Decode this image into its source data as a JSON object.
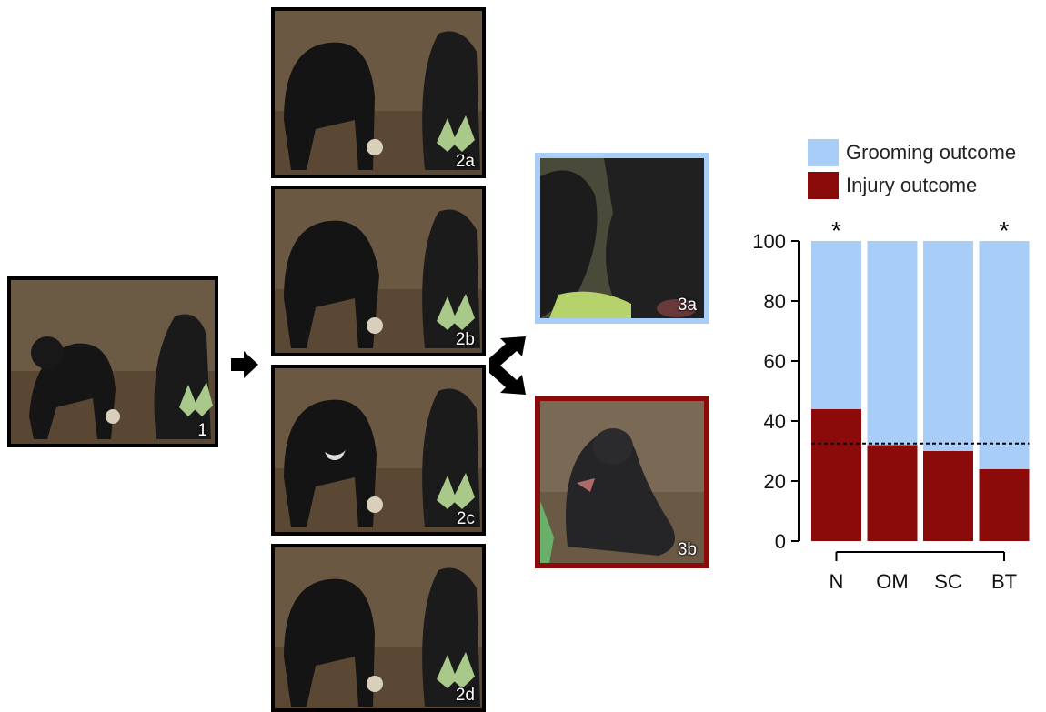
{
  "panels": {
    "left": {
      "label": "1"
    },
    "p2a": {
      "label": "2a"
    },
    "p2b": {
      "label": "2b"
    },
    "p2c": {
      "label": "2c"
    },
    "p2d": {
      "label": "2d"
    },
    "p3a": {
      "label": "3a"
    },
    "p3b": {
      "label": "3b"
    }
  },
  "colors": {
    "grooming": "#a8cdf6",
    "injury": "#8b0a0a",
    "frame": "#000000"
  },
  "chart_data": {
    "type": "bar",
    "stacked": true,
    "categories": [
      "N",
      "OM",
      "SC",
      "BT"
    ],
    "series": [
      {
        "name": "Injury outcome",
        "values": [
          44,
          32,
          30,
          24
        ]
      },
      {
        "name": "Grooming outcome",
        "values": [
          56,
          68,
          70,
          76
        ]
      }
    ],
    "ylim": [
      0,
      100
    ],
    "yticks": [
      0,
      20,
      40,
      60,
      80,
      100
    ],
    "reference_line": 32.5,
    "significance": [
      "*",
      "",
      "",
      "*"
    ],
    "legend_position": "top"
  }
}
